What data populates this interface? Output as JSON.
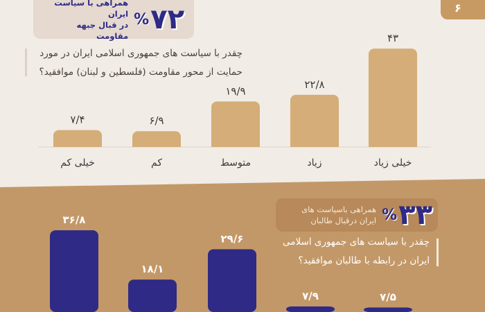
{
  "corner_label": "۶",
  "top_badge": {
    "number": "۷۲",
    "percent": "%",
    "line1": "همراهی با سیاست ایران",
    "line2": "در قبال جبهه مقاومت"
  },
  "top_question": {
    "line1": "چقدر با سیاست های جمهوری اسلامی ایران در مورد",
    "line2": "حمایت از محور مقاومت (فلسطین و لبنان) موافقید؟"
  },
  "bottom_badge": {
    "number": "۳۳",
    "percent": "%",
    "line1": "همراهی باسیاست های",
    "line2": "ایران درقبال طالبان"
  },
  "bottom_question": {
    "line1": "چقدر با سیاست های جمهوری اسلامی",
    "line2": "ایران در رابطه با طالبان موافقید؟"
  },
  "colors": {
    "top_bar": "#d4ad78",
    "bottom_bar": "#2e2a85",
    "top_bg": "#f1ece6",
    "bottom_bg": "#c39868"
  },
  "chart_data": [
    {
      "type": "bar",
      "title": "چقدر با سیاست های جمهوری اسلامی ایران در مورد حمایت از محور مقاومت (فلسطین و لبنان) موافقید؟",
      "categories": [
        "خیلی کم",
        "کم",
        "متوسط",
        "زیاد",
        "خیلی زیاد"
      ],
      "values": [
        7.4,
        6.9,
        19.9,
        22.8,
        43
      ],
      "value_labels": [
        "۷/۴",
        "۶/۹",
        "۱۹/۹",
        "۲۲/۸",
        "۴۳"
      ],
      "grid": false
    },
    {
      "type": "bar",
      "title": "چقدر با سیاست های جمهوری اسلامی ایران در رابطه با طالبان موافقید؟",
      "values": [
        36.8,
        18.1,
        29.6,
        7.9,
        7.5
      ],
      "value_labels": [
        "۳۶/۸",
        "۱۸/۱",
        "۲۹/۶",
        "۷/۹",
        "۷/۵"
      ],
      "grid": false
    }
  ]
}
